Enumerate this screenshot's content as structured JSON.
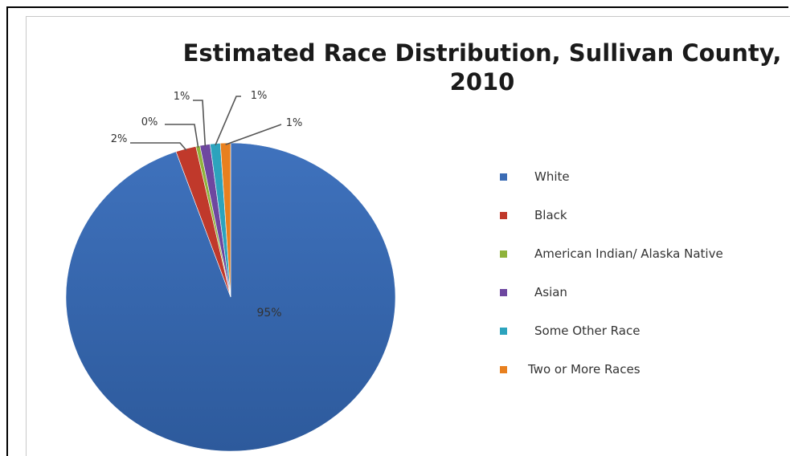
{
  "chart_data": {
    "type": "pie",
    "title": "Estimated Race Distribution, Sullivan County, 2010",
    "title_lines": [
      "Estimated Race Distribution, Sullivan County,",
      "2010"
    ],
    "categories": [
      "White",
      "Black",
      "American Indian/ Alaska Native",
      "Asian",
      "Some Other Race",
      "Two or More Races"
    ],
    "values": [
      95,
      2,
      0,
      1,
      1,
      1
    ],
    "data_labels": [
      "95%",
      "2%",
      "0%",
      "1%",
      "1%",
      "1%"
    ],
    "colors": [
      "#3b6cb5",
      "#c0392b",
      "#8fb33b",
      "#6e47a0",
      "#2ca3bd",
      "#e8801f"
    ],
    "legend_position": "right"
  }
}
